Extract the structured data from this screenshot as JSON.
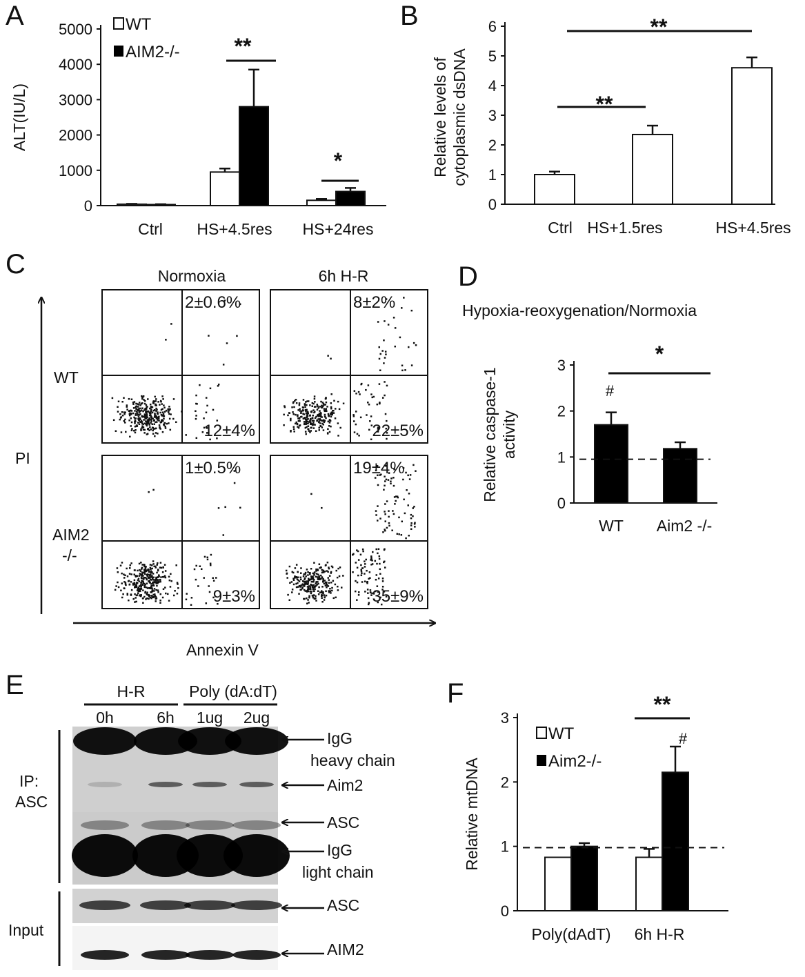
{
  "colors": {
    "wt": "#ffffff",
    "ko": "#000000",
    "axis": "#111111"
  },
  "chart_data": [
    {
      "panel": "A",
      "type": "bar",
      "ylabel": "ALT(IU/L)",
      "ylim": [
        0,
        5000
      ],
      "yticks": [
        "0",
        "1000",
        "2000",
        "3000",
        "4000",
        "5000"
      ],
      "categories": [
        "Ctrl",
        "HS+4.5res",
        "HS+24res"
      ],
      "series": [
        {
          "name": "WT",
          "values": [
            40,
            950,
            150
          ],
          "errors": [
            10,
            100,
            40
          ]
        },
        {
          "name": "AIM2-/-",
          "values": [
            30,
            2800,
            400
          ],
          "errors": [
            10,
            1050,
            100
          ]
        }
      ],
      "significance": [
        "**",
        "*"
      ]
    },
    {
      "panel": "B",
      "type": "bar",
      "ylabel": "Relative levels of cytoplasmic dsDNA",
      "ylabel_lines": [
        "Relative levels of",
        "cytoplasmic dsDNA"
      ],
      "ylim": [
        0,
        6
      ],
      "yticks": [
        "0",
        "1",
        "2",
        "3",
        "4",
        "5",
        "6"
      ],
      "categories": [
        "Ctrl",
        "HS+1.5res",
        "HS+4.5res"
      ],
      "series": [
        {
          "values": [
            1.0,
            2.35,
            4.6
          ],
          "errors": [
            0.1,
            0.3,
            0.35
          ]
        }
      ],
      "significance": [
        "**",
        "**"
      ]
    },
    {
      "panel": "D",
      "type": "bar",
      "title": "Hypoxia-reoxygenation/Normoxia",
      "ylabel": "Relative caspase-1 activity",
      "ylabel_lines": [
        "Relative caspase-1",
        "activity"
      ],
      "ylim": [
        0,
        3
      ],
      "yticks": [
        "0",
        "1",
        "2",
        "3"
      ],
      "categories": [
        "WT",
        "Aim2 -/-"
      ],
      "series": [
        {
          "values": [
            1.7,
            1.18
          ],
          "errors": [
            0.27,
            0.14
          ]
        }
      ],
      "reference_line": 0.95,
      "significance": [
        "*",
        "#"
      ]
    },
    {
      "panel": "F",
      "type": "bar",
      "ylabel": "Relative mtDNA",
      "ylim": [
        0,
        3
      ],
      "yticks": [
        "0",
        "1",
        "2",
        "3"
      ],
      "categories": [
        "Poly(dAdT)",
        "6h H-R"
      ],
      "series": [
        {
          "name": "WT",
          "values": [
            0.83,
            0.83
          ],
          "errors": [
            0.0,
            0.13
          ]
        },
        {
          "name": "Aim2-/-",
          "values": [
            1.0,
            2.15
          ],
          "errors": [
            0.05,
            0.4
          ]
        }
      ],
      "reference_line": 0.98,
      "significance": [
        "**",
        "#"
      ]
    }
  ],
  "panels": {
    "a": "A",
    "b": "B",
    "c": "C",
    "d": "D",
    "e": "E",
    "f": "F"
  },
  "legend_a": {
    "wt": "WT",
    "ko": "AIM2-/-"
  },
  "legend_f": {
    "wt": "WT",
    "ko": "Aim2-/-"
  },
  "flow": {
    "col_headers": [
      "Normoxia",
      "6h H-R"
    ],
    "row_labels": [
      "WT",
      "AIM2",
      "-/-"
    ],
    "y_axis": "PI",
    "x_axis": "Annexin V",
    "quadrant_values": {
      "wt_norm_upper": "2±0.6%",
      "wt_norm_lower": "12±4%",
      "wt_hr_upper": "8±2%",
      "wt_hr_lower": "22±5%",
      "ko_norm_upper": "1±0.5%",
      "ko_norm_lower": "9±3%",
      "ko_hr_upper": "19±4%",
      "ko_hr_lower": "35±9%"
    }
  },
  "blot": {
    "group1": "H-R",
    "group2": "Poly (dA:dT)",
    "lanes": [
      "0h",
      "6h",
      "1ug",
      "2ug"
    ],
    "left_labels": [
      "IP:",
      "ASC",
      "Input"
    ],
    "right_labels": [
      "IgG",
      "heavy chain",
      "Aim2",
      "ASC",
      "IgG",
      "light chain",
      "ASC",
      "AIM2"
    ]
  }
}
